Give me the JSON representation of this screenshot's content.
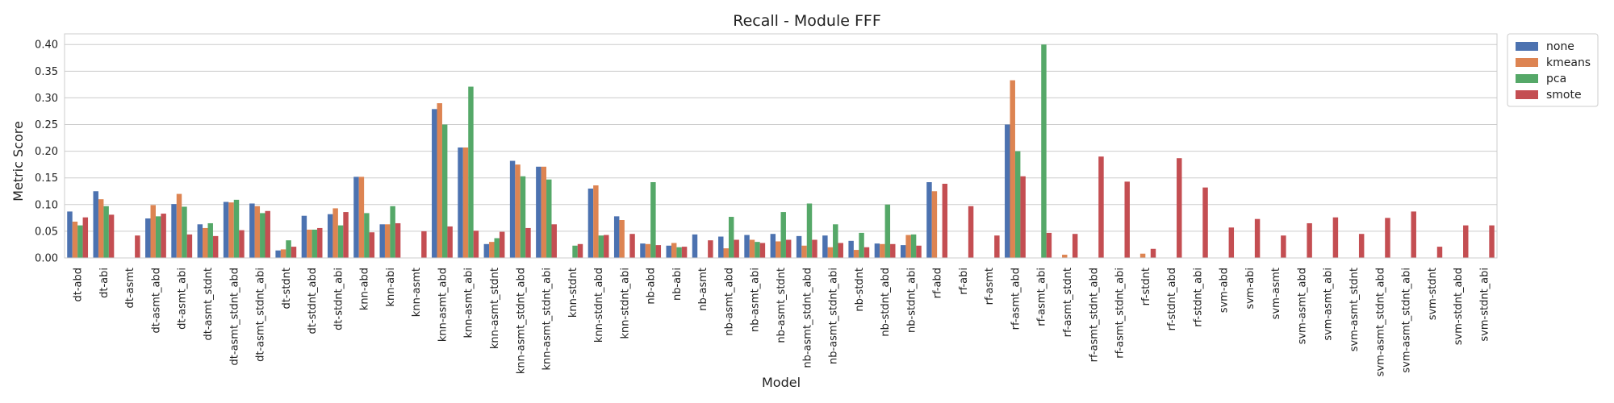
{
  "chart_data": {
    "type": "bar",
    "title": "Recall - Module FFF",
    "xlabel": "Model",
    "ylabel": "Metric Score",
    "ylim": [
      0,
      0.42
    ],
    "yticks": [
      "0.00",
      "0.05",
      "0.10",
      "0.15",
      "0.20",
      "0.25",
      "0.30",
      "0.35",
      "0.40"
    ],
    "grid": true,
    "legend_placement": "outside-top-right",
    "categories": [
      "dt-abd",
      "dt-abi",
      "dt-asmt",
      "dt-asmt_abd",
      "dt-asmt_abi",
      "dt-asmt_stdnt",
      "dt-asmt_stdnt_abd",
      "dt-asmt_stdnt_abi",
      "dt-stdnt",
      "dt-stdnt_abd",
      "dt-stdnt_abi",
      "knn-abd",
      "knn-abi",
      "knn-asmt",
      "knn-asmt_abd",
      "knn-asmt_abi",
      "knn-asmt_stdnt",
      "knn-asmt_stdnt_abd",
      "knn-asmt_stdnt_abi",
      "knn-stdnt",
      "knn-stdnt_abd",
      "knn-stdnt_abi",
      "nb-abd",
      "nb-abi",
      "nb-asmt",
      "nb-asmt_abd",
      "nb-asmt_abi",
      "nb-asmt_stdnt",
      "nb-asmt_stdnt_abd",
      "nb-asmt_stdnt_abi",
      "nb-stdnt",
      "nb-stdnt_abd",
      "nb-stdnt_abi",
      "rf-abd",
      "rf-abi",
      "rf-asmt",
      "rf-asmt_abd",
      "rf-asmt_abi",
      "rf-asmt_stdnt",
      "rf-asmt_stdnt_abd",
      "rf-asmt_stdnt_abi",
      "rf-stdnt",
      "rf-stdnt_abd",
      "rf-stdnt_abi",
      "svm-abd",
      "svm-abi",
      "svm-asmt",
      "svm-asmt_abd",
      "svm-asmt_abi",
      "svm-asmt_stdnt",
      "svm-asmt_stdnt_abd",
      "svm-asmt_stdnt_abi",
      "svm-stdnt",
      "svm-stdnt_abd",
      "svm-stdnt_abi"
    ],
    "series": [
      {
        "name": "none",
        "color": "#4c72b0",
        "values": [
          0.087,
          0.125,
          0,
          0.074,
          0.101,
          0.063,
          0.105,
          0.102,
          0.014,
          0.079,
          0.082,
          0.152,
          0.063,
          0,
          0.279,
          0.207,
          0.026,
          0.182,
          0.171,
          0,
          0.13,
          0.078,
          0.027,
          0.023,
          0.044,
          0.04,
          0.043,
          0.045,
          0.041,
          0.042,
          0.032,
          0.027,
          0.024,
          0.142,
          0,
          0,
          0.25,
          0,
          0,
          0,
          0,
          0,
          0,
          0,
          0,
          0,
          0,
          0,
          0,
          0,
          0,
          0,
          0,
          0,
          0
        ]
      },
      {
        "name": "kmeans",
        "color": "#dd8452",
        "values": [
          0.068,
          0.11,
          0,
          0.099,
          0.12,
          0.056,
          0.104,
          0.097,
          0.016,
          0.053,
          0.093,
          0.152,
          0.063,
          0,
          0.29,
          0.207,
          0.03,
          0.175,
          0.171,
          0,
          0.136,
          0.071,
          0.026,
          0.028,
          0,
          0.018,
          0.034,
          0.031,
          0.023,
          0.02,
          0.015,
          0.026,
          0.043,
          0.125,
          0,
          0,
          0.333,
          0,
          0.006,
          0,
          0,
          0.008,
          0,
          0,
          0,
          0,
          0,
          0,
          0,
          0,
          0,
          0,
          0,
          0,
          0
        ]
      },
      {
        "name": "pca",
        "color": "#55a868",
        "values": [
          0.061,
          0.097,
          0,
          0.078,
          0.096,
          0.065,
          0.109,
          0.084,
          0.033,
          0.053,
          0.061,
          0.084,
          0.097,
          0,
          0.25,
          0.321,
          0.037,
          0.153,
          0.147,
          0.023,
          0.042,
          0,
          0.142,
          0.02,
          0,
          0.077,
          0.03,
          0.086,
          0.102,
          0.063,
          0.047,
          0.1,
          0.044,
          0,
          0,
          0,
          0.2,
          0.4,
          0,
          0,
          0,
          0,
          0,
          0,
          0,
          0,
          0,
          0,
          0,
          0,
          0,
          0,
          0,
          0,
          0
        ]
      },
      {
        "name": "smote",
        "color": "#c44e52",
        "values": [
          0.076,
          0.081,
          0.042,
          0.083,
          0.044,
          0.041,
          0.052,
          0.088,
          0.021,
          0.056,
          0.086,
          0.048,
          0.065,
          0.05,
          0.059,
          0.051,
          0.049,
          0.056,
          0.063,
          0.026,
          0.043,
          0.045,
          0.024,
          0.021,
          0.033,
          0.034,
          0.028,
          0.034,
          0.034,
          0.028,
          0.02,
          0.026,
          0.023,
          0.139,
          0.097,
          0.042,
          0.153,
          0.047,
          0.045,
          0.19,
          0.143,
          0.017,
          0.187,
          0.132,
          0.057,
          0.073,
          0.042,
          0.065,
          0.076,
          0.045,
          0.075,
          0.087,
          0.021,
          0.061,
          0.061
        ]
      }
    ]
  }
}
